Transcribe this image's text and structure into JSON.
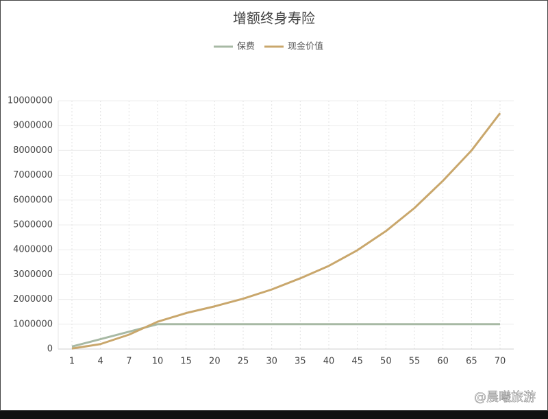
{
  "chart_data": {
    "type": "line",
    "title": "增额终身寿险",
    "categories": [
      "1",
      "4",
      "7",
      "10",
      "15",
      "20",
      "25",
      "30",
      "35",
      "40",
      "45",
      "50",
      "55",
      "60",
      "65",
      "70"
    ],
    "series": [
      {
        "name": "保费",
        "color": "#a7b9a4",
        "values": [
          100000,
          400000,
          700000,
          1000000,
          1000000,
          1000000,
          1000000,
          1000000,
          1000000,
          1000000,
          1000000,
          1000000,
          1000000,
          1000000,
          1000000,
          1000000
        ]
      },
      {
        "name": "现金价值",
        "color": "#c9a76c",
        "values": [
          20000,
          200000,
          580000,
          1100000,
          1450000,
          1720000,
          2030000,
          2400000,
          2850000,
          3350000,
          3980000,
          4750000,
          5680000,
          6780000,
          8000000,
          9500000
        ]
      }
    ],
    "ylim": [
      0,
      10000000
    ],
    "yticks": [
      0,
      1000000,
      2000000,
      3000000,
      4000000,
      5000000,
      6000000,
      7000000,
      8000000,
      9000000,
      10000000
    ],
    "grid": true,
    "legend": "top",
    "watermark": "@晨曦旅游"
  }
}
